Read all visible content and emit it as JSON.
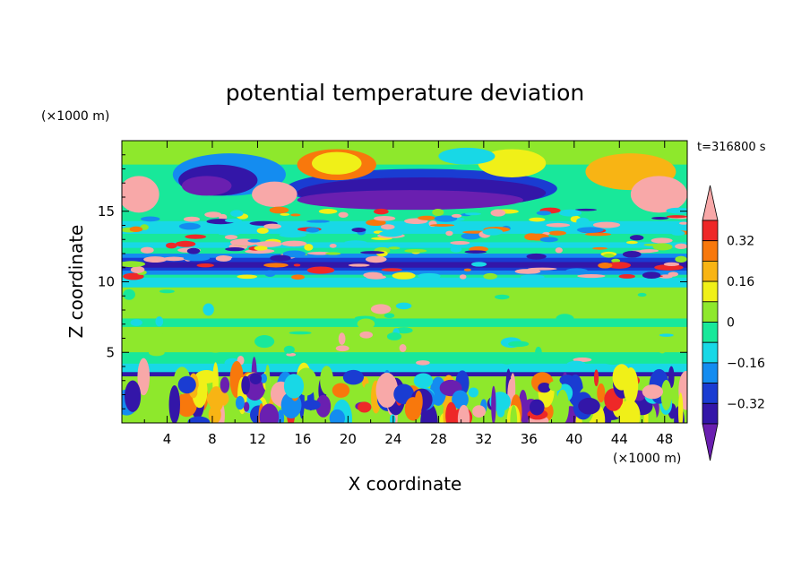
{
  "chart_data": {
    "type": "heatmap",
    "title": "potential temperature deviation",
    "xlabel": "X coordinate",
    "ylabel": "Z coordinate",
    "x_unit": "(×1000 m)",
    "y_unit": "(×1000 m)",
    "time_label": "t=316800 s",
    "xlim": [
      0,
      50
    ],
    "ylim": [
      0,
      20
    ],
    "x_ticks": [
      "4",
      "8",
      "12",
      "16",
      "20",
      "24",
      "28",
      "32",
      "36",
      "40",
      "44",
      "48"
    ],
    "y_ticks": [
      "5",
      "10",
      "15"
    ],
    "colorbar": {
      "labels": [
        "0.32",
        "0.16",
        "0",
        "−0.16",
        "−0.32"
      ],
      "levels": [
        -0.4,
        -0.32,
        -0.24,
        -0.16,
        -0.08,
        0,
        0.08,
        0.16,
        0.24,
        0.32,
        0.4
      ],
      "colors": [
        "#6a1fb0",
        "#3316a8",
        "#1a3cd2",
        "#148cf0",
        "#18d8e6",
        "#18e89a",
        "#8ee82c",
        "#f0f018",
        "#f8b414",
        "#f8780c",
        "#ee2828",
        "#f8a8a8"
      ]
    },
    "layers": [
      {
        "zmin": 0,
        "zmax": 3.5,
        "description": "turbulent boundary layer, mixed values"
      },
      {
        "zmin": 3.5,
        "zmax": 10,
        "value_range": [
          -0.16,
          0.08
        ]
      },
      {
        "zmin": 10,
        "zmax": 12,
        "value_range": [
          -0.4,
          0.4
        ]
      },
      {
        "zmin": 12,
        "zmax": 15,
        "value_range": [
          -0.16,
          0.4
        ]
      },
      {
        "zmin": 15,
        "zmax": 18.5,
        "value_range": [
          -0.4,
          0.4
        ]
      },
      {
        "zmin": 18.5,
        "zmax": 20,
        "value_range": [
          0,
          0.24
        ]
      }
    ]
  }
}
